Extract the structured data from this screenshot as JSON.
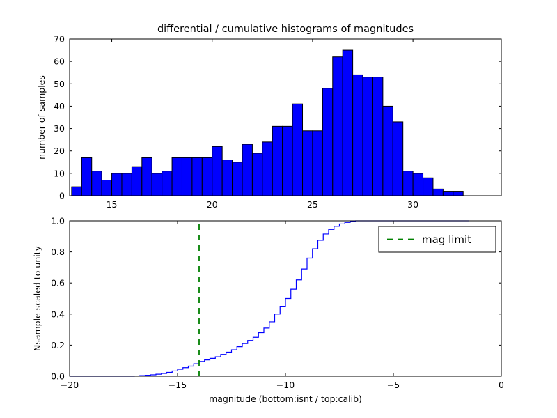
{
  "figure": {
    "background": "#ffffff",
    "frame_color": "#000000"
  },
  "chart_data": [
    {
      "type": "bar",
      "variant": "histogram",
      "title": "differential / cumulative histograms of magnitudes",
      "xlabel": "",
      "ylabel": "number of samples",
      "xlim": [
        12.9,
        34.4
      ],
      "ylim": [
        0,
        70
      ],
      "xticks": [
        15,
        20,
        25,
        30
      ],
      "xtick_labels": [
        "15",
        "20",
        "25",
        "30"
      ],
      "yticks": [
        0,
        10,
        20,
        30,
        40,
        50,
        60,
        70
      ],
      "ytick_labels": [
        "0",
        "10",
        "20",
        "30",
        "40",
        "50",
        "60",
        "70"
      ],
      "grid": false,
      "bin_start": 13.0,
      "bin_width": 0.5,
      "counts": [
        4,
        17,
        11,
        7,
        10,
        10,
        13,
        17,
        10,
        11,
        17,
        17,
        17,
        17,
        22,
        16,
        15,
        23,
        19,
        24,
        31,
        31,
        41,
        29,
        29,
        48,
        62,
        65,
        54,
        53,
        53,
        40,
        33,
        11,
        10,
        8,
        3,
        2,
        2
      ],
      "bar_fill": "#0000ff",
      "bar_edge": "#000000"
    },
    {
      "type": "line",
      "variant": "cumulative-step",
      "title": "",
      "xlabel": "magnitude (bottom:isnt / top:calib)",
      "ylabel": "Nsample scaled to unity",
      "xlim": [
        -20,
        0
      ],
      "ylim": [
        0,
        1.0
      ],
      "xticks": [
        -20,
        -15,
        -10,
        -5,
        0
      ],
      "xtick_labels": [
        "−20",
        "−15",
        "−10",
        "−5",
        "0"
      ],
      "yticks": [
        0,
        0.2,
        0.4,
        0.6,
        0.8,
        1.0
      ],
      "ytick_labels": [
        "0.0",
        "0.2",
        "0.4",
        "0.6",
        "0.8",
        "1.0"
      ],
      "grid": false,
      "line_color": "#0000ff",
      "steps": [
        [
          -20,
          0
        ],
        [
          -17,
          0.002
        ],
        [
          -16.75,
          0.004
        ],
        [
          -16.5,
          0.006
        ],
        [
          -16.25,
          0.009
        ],
        [
          -16,
          0.013
        ],
        [
          -15.75,
          0.018
        ],
        [
          -15.5,
          0.025
        ],
        [
          -15.25,
          0.034
        ],
        [
          -15,
          0.045
        ],
        [
          -14.75,
          0.055
        ],
        [
          -14.5,
          0.065
        ],
        [
          -14.25,
          0.08
        ],
        [
          -14,
          0.095
        ],
        [
          -13.75,
          0.105
        ],
        [
          -13.5,
          0.115
        ],
        [
          -13.25,
          0.125
        ],
        [
          -13,
          0.14
        ],
        [
          -12.75,
          0.155
        ],
        [
          -12.5,
          0.17
        ],
        [
          -12.25,
          0.19
        ],
        [
          -12,
          0.21
        ],
        [
          -11.75,
          0.23
        ],
        [
          -11.5,
          0.25
        ],
        [
          -11.25,
          0.28
        ],
        [
          -11,
          0.31
        ],
        [
          -10.75,
          0.35
        ],
        [
          -10.5,
          0.4
        ],
        [
          -10.25,
          0.45
        ],
        [
          -10,
          0.5
        ],
        [
          -9.75,
          0.56
        ],
        [
          -9.5,
          0.62
        ],
        [
          -9.25,
          0.69
        ],
        [
          -9,
          0.76
        ],
        [
          -8.75,
          0.82
        ],
        [
          -8.5,
          0.875
        ],
        [
          -8.25,
          0.915
        ],
        [
          -8,
          0.945
        ],
        [
          -7.75,
          0.965
        ],
        [
          -7.5,
          0.98
        ],
        [
          -7.25,
          0.99
        ],
        [
          -7,
          0.995
        ],
        [
          -6.75,
          1.0
        ],
        [
          -1.5,
          1.0
        ]
      ],
      "vline": {
        "x": -14,
        "color": "#008000",
        "style": "dashed"
      },
      "legend": {
        "position": "upper right",
        "entries": [
          {
            "label": "mag limit",
            "color": "#008000",
            "dash": true
          }
        ]
      }
    }
  ]
}
